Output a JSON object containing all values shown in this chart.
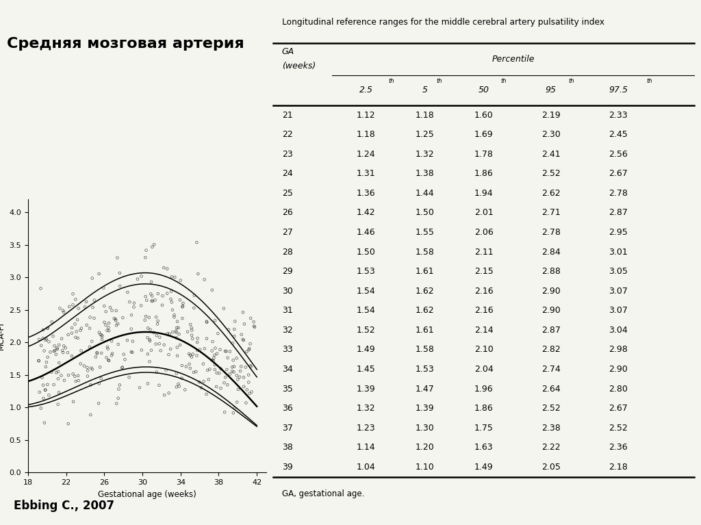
{
  "title_left": "Средняя мозговая артерия",
  "title_right": "Longitudinal reference ranges for the middle cerebral artery pulsatility index",
  "author": "Ebbing C., 2007",
  "footnote": "GA, gestational age.",
  "table_col_headers": [
    "2.5th",
    "5th",
    "50th",
    "95th",
    "97.5th"
  ],
  "table_data": [
    [
      21,
      1.12,
      1.18,
      1.6,
      2.19,
      2.33
    ],
    [
      22,
      1.18,
      1.25,
      1.69,
      2.3,
      2.45
    ],
    [
      23,
      1.24,
      1.32,
      1.78,
      2.41,
      2.56
    ],
    [
      24,
      1.31,
      1.38,
      1.86,
      2.52,
      2.67
    ],
    [
      25,
      1.36,
      1.44,
      1.94,
      2.62,
      2.78
    ],
    [
      26,
      1.42,
      1.5,
      2.01,
      2.71,
      2.87
    ],
    [
      27,
      1.46,
      1.55,
      2.06,
      2.78,
      2.95
    ],
    [
      28,
      1.5,
      1.58,
      2.11,
      2.84,
      3.01
    ],
    [
      29,
      1.53,
      1.61,
      2.15,
      2.88,
      3.05
    ],
    [
      30,
      1.54,
      1.62,
      2.16,
      2.9,
      3.07
    ],
    [
      31,
      1.54,
      1.62,
      2.16,
      2.9,
      3.07
    ],
    [
      32,
      1.52,
      1.61,
      2.14,
      2.87,
      3.04
    ],
    [
      33,
      1.49,
      1.58,
      2.1,
      2.82,
      2.98
    ],
    [
      34,
      1.45,
      1.53,
      2.04,
      2.74,
      2.9
    ],
    [
      35,
      1.39,
      1.47,
      1.96,
      2.64,
      2.8
    ],
    [
      36,
      1.32,
      1.39,
      1.86,
      2.52,
      2.67
    ],
    [
      37,
      1.23,
      1.3,
      1.75,
      2.38,
      2.52
    ],
    [
      38,
      1.14,
      1.2,
      1.63,
      2.22,
      2.36
    ],
    [
      39,
      1.04,
      1.1,
      1.49,
      2.05,
      2.18
    ]
  ],
  "plot_xlabel": "Gestational age (weeks)",
  "plot_ylabel": "MCA-PI",
  "plot_xlim": [
    18,
    43
  ],
  "plot_ylim": [
    0.0,
    4.2
  ],
  "plot_xticks": [
    18,
    22,
    26,
    30,
    34,
    38,
    42
  ],
  "plot_yticks": [
    0.0,
    0.5,
    1.0,
    1.5,
    2.0,
    2.5,
    3.0,
    3.5,
    4.0
  ],
  "background_color": "#f5f5f0"
}
